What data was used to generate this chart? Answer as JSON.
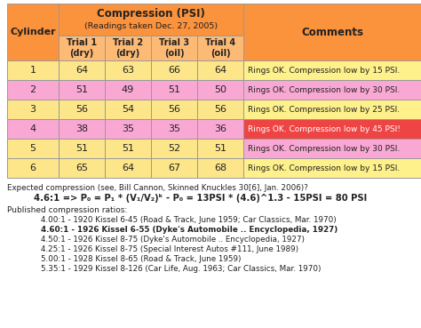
{
  "title_line1": "Compression (PSI)",
  "title_line2": "(Readings taken Dec. 27, 2005)",
  "cylinders": [
    1,
    2,
    3,
    4,
    5,
    6
  ],
  "trial1": [
    64,
    51,
    56,
    38,
    51,
    65
  ],
  "trial2": [
    63,
    49,
    54,
    35,
    51,
    64
  ],
  "trial3": [
    66,
    51,
    56,
    35,
    52,
    67
  ],
  "trial4": [
    64,
    50,
    56,
    36,
    51,
    68
  ],
  "comments": [
    "Rings OK. Compression low by 15 PSI.",
    "Rings OK. Compression low by 30 PSI.",
    "Rings OK. Compression low by 25 PSI.",
    "Rings OK. Compression low by 45 PSI!",
    "Rings OK. Compression low by 30 PSI.",
    "Rings OK. Compression low by 15 PSI."
  ],
  "row_bg": [
    "#fde68a",
    "#f9a8d4",
    "#fde68a",
    "#f9a8d4",
    "#fde68a",
    "#fde68a"
  ],
  "comment_bg": [
    "#fef08a",
    "#f9a8d4",
    "#fef08a",
    "#ef4444",
    "#f9a8d4",
    "#fef08a"
  ],
  "header_bg": "#fb923c",
  "header_bg_light": "#fdba74",
  "footnote_line1": "Expected compression (see, Bill Cannon, Skinned Knuckles 30[6], Jan. 2006)?",
  "footnote_line2": "4.6:1 => P₀ = P₁ * (V₁/V₂)ᵏ - P₀ = 13PSI * (4.6)^1.3 - 15PSI = 80 PSI",
  "published_title": "Published compression ratios:",
  "published_ratios": [
    "4.00:1 - 1920 Kissel 6-45 (Road & Track, June 1959; Car Classics, Mar. 1970)",
    "4.60:1 - 1926 Kissel 6-55 (Dyke's Automobile .. Encyclopedia, 1927)",
    "4.50:1 - 1926 Kissel 8-75 (Dyke's Automobile .. Encyclopedia, 1927)",
    "4.25:1 - 1926 Kissel 8-75 (Special Interest Autos #111, June 1989)",
    "5.00:1 - 1928 Kissel 8-65 (Road & Track, June 1959)",
    "5.35:1 - 1929 Kissel 8-126 (Car Life, Aug. 1963; Car Classics, Mar. 1970)"
  ],
  "bold_ratio_index": 1,
  "bg_color": "#ffffff",
  "border_color": "#999999",
  "text_dark": "#222222"
}
